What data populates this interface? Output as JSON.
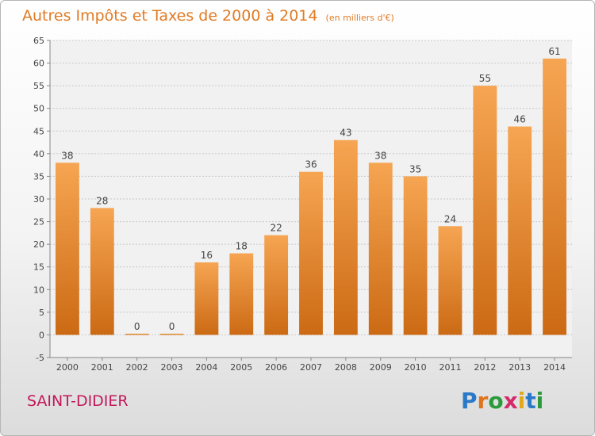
{
  "header": {
    "title": "Autres Impôts et Taxes de 2000 à 2014",
    "unit": "(en milliers d'€)"
  },
  "footer": {
    "commune": "SAINT-DIDIER",
    "logo": "Proxiti"
  },
  "colors": {
    "title": "#e07b24",
    "commune": "#c2185b",
    "bar_light": "#f6a552",
    "bar_dark": "#cc6a14"
  },
  "chart_data": {
    "type": "bar",
    "title": "Autres Impôts et Taxes de 2000 à 2014",
    "subtitle": "(en milliers d'€)",
    "xlabel": "",
    "ylabel": "",
    "categories": [
      "2000",
      "2001",
      "2002",
      "2003",
      "2004",
      "2005",
      "2006",
      "2007",
      "2008",
      "2009",
      "2010",
      "2011",
      "2012",
      "2013",
      "2014"
    ],
    "values": [
      38,
      28,
      0,
      0,
      16,
      18,
      22,
      36,
      43,
      38,
      35,
      24,
      55,
      46,
      61
    ],
    "ylim": [
      -5,
      65
    ],
    "yticks": [
      -5,
      0,
      5,
      10,
      15,
      20,
      25,
      30,
      35,
      40,
      45,
      50,
      55,
      60,
      65
    ],
    "grid": true,
    "legend": "none"
  }
}
